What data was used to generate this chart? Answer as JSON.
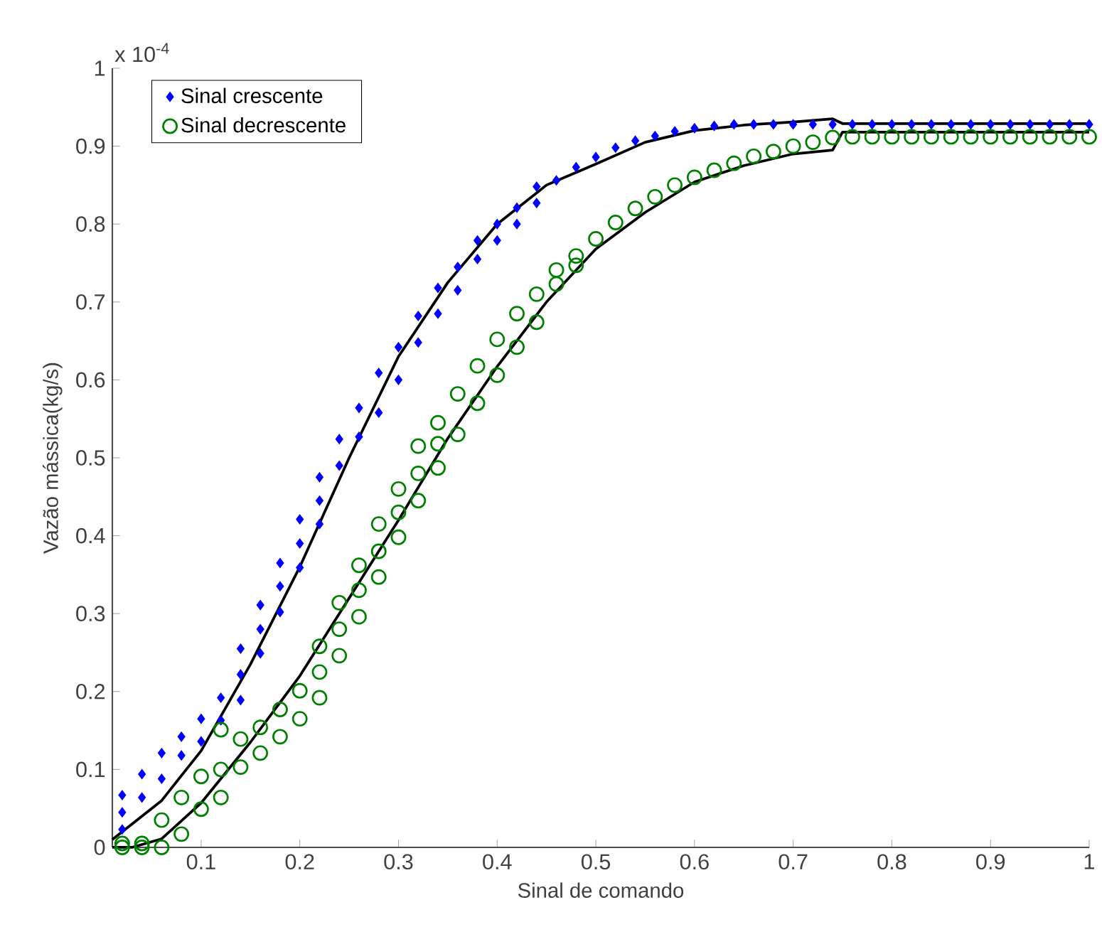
{
  "chart_data": {
    "type": "scatter",
    "xlabel": "Sinal de comando",
    "ylabel": "Vazão mássica(kg/s)",
    "annotations": [
      "x 10$^{-4}$"
    ],
    "xlim": [
      0.01,
      1
    ],
    "ylim": [
      0,
      1
    ],
    "xticks": [
      0.1,
      0.2,
      0.3,
      0.4,
      0.5,
      0.6,
      0.7,
      0.8,
      0.9,
      1
    ],
    "yticks": [
      0,
      0.1,
      0.2,
      0.3,
      0.4,
      0.5,
      0.6,
      0.7,
      0.8,
      0.9,
      1
    ],
    "grid": false,
    "legend": "top left",
    "series": [
      {
        "name": "Sinal crescente",
        "type": "scatter",
        "marker": "diamond",
        "color": "#0000ff",
        "x": [
          0.02,
          0.02,
          0.02,
          0.04,
          0.04,
          0.06,
          0.06,
          0.08,
          0.08,
          0.1,
          0.1,
          0.12,
          0.12,
          0.14,
          0.14,
          0.14,
          0.16,
          0.16,
          0.16,
          0.18,
          0.18,
          0.18,
          0.2,
          0.2,
          0.2,
          0.22,
          0.22,
          0.22,
          0.24,
          0.24,
          0.26,
          0.26,
          0.28,
          0.28,
          0.3,
          0.3,
          0.32,
          0.32,
          0.34,
          0.34,
          0.36,
          0.36,
          0.38,
          0.38,
          0.4,
          0.4,
          0.42,
          0.42,
          0.44,
          0.44,
          0.46,
          0.48,
          0.5,
          0.52,
          0.54,
          0.56,
          0.58,
          0.6,
          0.62,
          0.64,
          0.66,
          0.68,
          0.7,
          0.72,
          0.74,
          0.76,
          0.78,
          0.8,
          0.82,
          0.84,
          0.86,
          0.88,
          0.9,
          0.92,
          0.94,
          0.96,
          0.98,
          1.0
        ],
        "values": [
          0.023,
          0.045,
          0.067,
          0.064,
          0.094,
          0.088,
          0.121,
          0.118,
          0.142,
          0.136,
          0.165,
          0.163,
          0.192,
          0.189,
          0.222,
          0.255,
          0.249,
          0.28,
          0.311,
          0.302,
          0.335,
          0.365,
          0.359,
          0.39,
          0.421,
          0.415,
          0.445,
          0.475,
          0.49,
          0.524,
          0.527,
          0.564,
          0.558,
          0.609,
          0.6,
          0.642,
          0.648,
          0.682,
          0.685,
          0.718,
          0.715,
          0.745,
          0.755,
          0.779,
          0.779,
          0.8,
          0.8,
          0.821,
          0.827,
          0.848,
          0.856,
          0.873,
          0.886,
          0.898,
          0.907,
          0.913,
          0.919,
          0.923,
          0.926,
          0.928,
          0.928,
          0.928,
          0.928,
          0.928,
          0.928,
          0.928,
          0.928,
          0.928,
          0.928,
          0.928,
          0.928,
          0.928,
          0.928,
          0.928,
          0.928,
          0.928,
          0.928,
          0.928
        ]
      },
      {
        "name": "Sinal decrescente",
        "type": "scatter",
        "marker": "circle",
        "color": "#008000",
        "x": [
          0.02,
          0.02,
          0.04,
          0.04,
          0.06,
          0.06,
          0.08,
          0.08,
          0.1,
          0.1,
          0.12,
          0.12,
          0.12,
          0.14,
          0.14,
          0.16,
          0.16,
          0.18,
          0.18,
          0.2,
          0.2,
          0.22,
          0.22,
          0.22,
          0.24,
          0.24,
          0.24,
          0.26,
          0.26,
          0.26,
          0.28,
          0.28,
          0.28,
          0.3,
          0.3,
          0.3,
          0.32,
          0.32,
          0.32,
          0.34,
          0.34,
          0.34,
          0.36,
          0.36,
          0.38,
          0.38,
          0.4,
          0.4,
          0.42,
          0.42,
          0.44,
          0.44,
          0.46,
          0.46,
          0.48,
          0.48,
          0.5,
          0.52,
          0.54,
          0.56,
          0.58,
          0.6,
          0.62,
          0.64,
          0.66,
          0.68,
          0.7,
          0.72,
          0.74,
          0.76,
          0.78,
          0.8,
          0.82,
          0.84,
          0.86,
          0.88,
          0.9,
          0.92,
          0.94,
          0.96,
          0.98,
          1.0
        ],
        "values": [
          0,
          0.005,
          0,
          0.005,
          0,
          0.035,
          0.017,
          0.064,
          0.049,
          0.091,
          0.064,
          0.1,
          0.151,
          0.103,
          0.139,
          0.121,
          0.154,
          0.142,
          0.177,
          0.165,
          0.201,
          0.192,
          0.225,
          0.258,
          0.246,
          0.28,
          0.314,
          0.296,
          0.33,
          0.362,
          0.347,
          0.38,
          0.415,
          0.398,
          0.43,
          0.46,
          0.445,
          0.48,
          0.515,
          0.487,
          0.518,
          0.545,
          0.53,
          0.582,
          0.57,
          0.618,
          0.606,
          0.652,
          0.642,
          0.685,
          0.674,
          0.71,
          0.723,
          0.741,
          0.747,
          0.759,
          0.781,
          0.802,
          0.82,
          0.835,
          0.85,
          0.86,
          0.869,
          0.878,
          0.887,
          0.893,
          0.9,
          0.905,
          0.911,
          0.912,
          0.912,
          0.912,
          0.912,
          0.912,
          0.912,
          0.912,
          0.912,
          0.912,
          0.912,
          0.912,
          0.912,
          0.912
        ]
      },
      {
        "type": "line",
        "line_style": "solid",
        "color": "#000000",
        "x": [
          0.01,
          0.06,
          0.1,
          0.15,
          0.2,
          0.25,
          0.3,
          0.35,
          0.4,
          0.45,
          0.5,
          0.55,
          0.6,
          0.65,
          0.7,
          0.74,
          0.75,
          1.0
        ],
        "values": [
          0.01,
          0.06,
          0.124,
          0.235,
          0.36,
          0.5,
          0.63,
          0.725,
          0.8,
          0.85,
          0.877,
          0.905,
          0.92,
          0.927,
          0.931,
          0.935,
          0.929,
          0.929
        ]
      },
      {
        "type": "line",
        "line_style": "solid",
        "color": "#000000",
        "x": [
          0.01,
          0.03,
          0.06,
          0.1,
          0.15,
          0.2,
          0.25,
          0.3,
          0.35,
          0.4,
          0.45,
          0.5,
          0.55,
          0.6,
          0.65,
          0.7,
          0.74,
          0.75,
          1.0
        ],
        "values": [
          0.0,
          0.0,
          0.011,
          0.057,
          0.135,
          0.22,
          0.32,
          0.42,
          0.525,
          0.617,
          0.7,
          0.768,
          0.815,
          0.854,
          0.875,
          0.89,
          0.895,
          0.918,
          0.918
        ]
      }
    ]
  }
}
